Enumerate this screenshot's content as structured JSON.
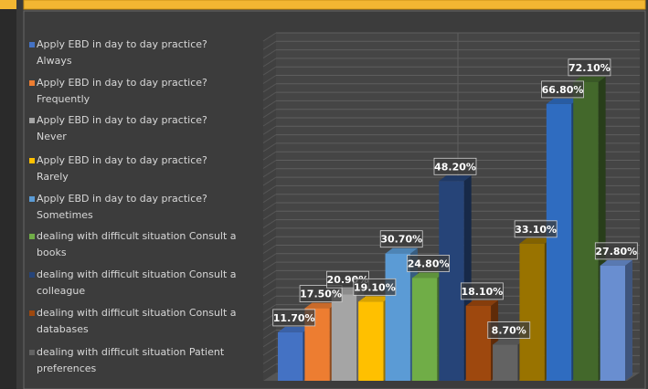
{
  "chart_data": {
    "type": "bar3d",
    "series": [
      {
        "name": "Apply EBD in day to day practice? Always",
        "color": "#4472c4",
        "values": [
          11.7
        ],
        "value_labels": [
          "11.70%"
        ]
      },
      {
        "name": "Apply EBD in day to day practice? Frequently",
        "color": "#ed7d31",
        "values": [
          17.5
        ],
        "value_labels": [
          "17.50%"
        ]
      },
      {
        "name": "Apply EBD in day to day practice? Never",
        "color": "#a5a5a5",
        "values": [
          20.9
        ],
        "value_labels": [
          "20.90%"
        ]
      },
      {
        "name": "Apply EBD in day to day practice? Rarely",
        "color": "#ffc000",
        "values": [
          19.1
        ],
        "value_labels": [
          "19.10%"
        ]
      },
      {
        "name": "Apply EBD in day to day practice? Sometimes",
        "color": "#5b9bd5",
        "values": [
          30.7
        ],
        "value_labels": [
          "30.70%"
        ]
      },
      {
        "name": "dealing with difficult situation Consult a books",
        "color": "#70ad47",
        "values": [
          24.8
        ],
        "value_labels": [
          "24.80%"
        ]
      },
      {
        "name": "dealing with difficult situation Consult a colleague",
        "color": "#264478",
        "values": [
          48.2
        ],
        "value_labels": [
          "48.20%"
        ]
      },
      {
        "name": "dealing with difficult situation Consult a databases",
        "color": "#9e480e",
        "values": [
          18.1
        ],
        "value_labels": [
          "18.10%"
        ]
      },
      {
        "name": "dealing with difficult situation Patient preferences",
        "color": "#636363",
        "values": [
          8.7
        ],
        "value_labels": [
          "8.70%"
        ]
      },
      {
        "name": null,
        "color": "#997300",
        "values": [
          33.1
        ],
        "value_labels": [
          "33.10%"
        ]
      },
      {
        "name": null,
        "color": "#2f6cc0",
        "values": [
          66.8
        ],
        "value_labels": [
          "66.80%"
        ]
      },
      {
        "name": null,
        "color": "#43682b",
        "values": [
          72.1
        ],
        "value_labels": [
          "72.10%"
        ]
      },
      {
        "name": null,
        "color": "#698ed0",
        "values": [
          27.8
        ],
        "value_labels": [
          "27.80%"
        ]
      }
    ],
    "ylim": [
      0,
      80
    ],
    "grid": true
  }
}
